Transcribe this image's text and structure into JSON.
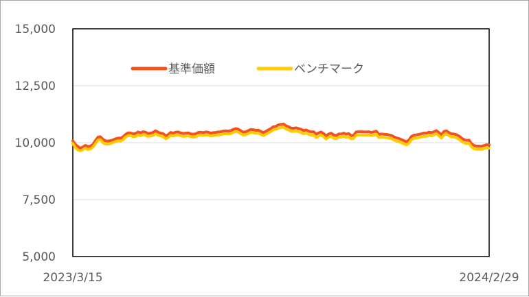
{
  "chart_data": {
    "type": "line",
    "ylim": [
      5000,
      15000
    ],
    "yticks": [
      "15,000",
      "12,500",
      "10,000",
      "7,500",
      "5,000"
    ],
    "ytick_values": [
      15000,
      12500,
      10000,
      7500,
      5000
    ],
    "x_start_label": "2023/3/15",
    "x_end_label": "2024/2/29",
    "grid": true,
    "legend_position": "top-center inside plot",
    "series": [
      {
        "name": "基準価額",
        "color": "#f4511e",
        "values": [
          10080,
          9920,
          9830,
          9760,
          9810,
          9880,
          9830,
          9850,
          9920,
          10090,
          10240,
          10260,
          10150,
          10080,
          10070,
          10090,
          10120,
          10170,
          10200,
          10200,
          10250,
          10360,
          10430,
          10430,
          10390,
          10400,
          10470,
          10430,
          10480,
          10460,
          10400,
          10420,
          10450,
          10520,
          10460,
          10420,
          10400,
          10300,
          10350,
          10450,
          10420,
          10460,
          10470,
          10430,
          10400,
          10420,
          10430,
          10390,
          10370,
          10390,
          10450,
          10460,
          10440,
          10470,
          10460,
          10420,
          10440,
          10450,
          10470,
          10480,
          10510,
          10520,
          10510,
          10530,
          10580,
          10620,
          10590,
          10520,
          10460,
          10480,
          10530,
          10580,
          10570,
          10540,
          10550,
          10490,
          10440,
          10500,
          10560,
          10620,
          10700,
          10720,
          10780,
          10800,
          10820,
          10740,
          10700,
          10640,
          10630,
          10650,
          10620,
          10590,
          10530,
          10560,
          10510,
          10470,
          10480,
          10370,
          10430,
          10470,
          10400,
          10300,
          10380,
          10420,
          10340,
          10310,
          10380,
          10380,
          10420,
          10370,
          10400,
          10300,
          10330,
          10470,
          10480,
          10480,
          10470,
          10470,
          10480,
          10450,
          10470,
          10510,
          10360,
          10380,
          10370,
          10360,
          10340,
          10320,
          10260,
          10210,
          10180,
          10140,
          10090,
          10040,
          10110,
          10270,
          10330,
          10340,
          10360,
          10390,
          10420,
          10420,
          10460,
          10440,
          10480,
          10530,
          10440,
          10340,
          10490,
          10520,
          10440,
          10390,
          10380,
          10350,
          10290,
          10200,
          10130,
          10100,
          10110,
          9950,
          9870,
          9850,
          9850,
          9840,
          9880,
          9910,
          9900
        ]
      },
      {
        "name": "ベンチマーク",
        "color": "#ffcc00",
        "values": [
          9960,
          9780,
          9680,
          9640,
          9690,
          9760,
          9700,
          9720,
          9800,
          9950,
          10110,
          10130,
          10000,
          9940,
          9930,
          9960,
          10000,
          10050,
          10080,
          10070,
          10120,
          10240,
          10300,
          10310,
          10260,
          10270,
          10340,
          10300,
          10350,
          10330,
          10270,
          10290,
          10320,
          10390,
          10330,
          10290,
          10270,
          10170,
          10220,
          10320,
          10290,
          10330,
          10340,
          10300,
          10270,
          10290,
          10300,
          10260,
          10240,
          10260,
          10320,
          10330,
          10310,
          10340,
          10330,
          10290,
          10310,
          10320,
          10340,
          10350,
          10380,
          10390,
          10380,
          10400,
          10450,
          10490,
          10460,
          10390,
          10330,
          10350,
          10400,
          10450,
          10440,
          10410,
          10420,
          10360,
          10310,
          10370,
          10430,
          10490,
          10570,
          10590,
          10640,
          10660,
          10680,
          10600,
          10560,
          10500,
          10490,
          10510,
          10480,
          10450,
          10390,
          10420,
          10370,
          10330,
          10340,
          10220,
          10290,
          10330,
          10260,
          10160,
          10240,
          10280,
          10200,
          10170,
          10240,
          10240,
          10280,
          10230,
          10260,
          10160,
          10190,
          10330,
          10340,
          10340,
          10330,
          10330,
          10340,
          10310,
          10330,
          10370,
          10220,
          10240,
          10230,
          10220,
          10200,
          10180,
          10120,
          10070,
          10040,
          10000,
          9950,
          9900,
          9970,
          10130,
          10190,
          10200,
          10220,
          10250,
          10280,
          10280,
          10320,
          10300,
          10340,
          10390,
          10300,
          10200,
          10350,
          10380,
          10300,
          10250,
          10240,
          10210,
          10150,
          10060,
          9990,
          9960,
          9970,
          9810,
          9730,
          9710,
          9710,
          9700,
          9740,
          9770,
          9760
        ]
      }
    ]
  }
}
